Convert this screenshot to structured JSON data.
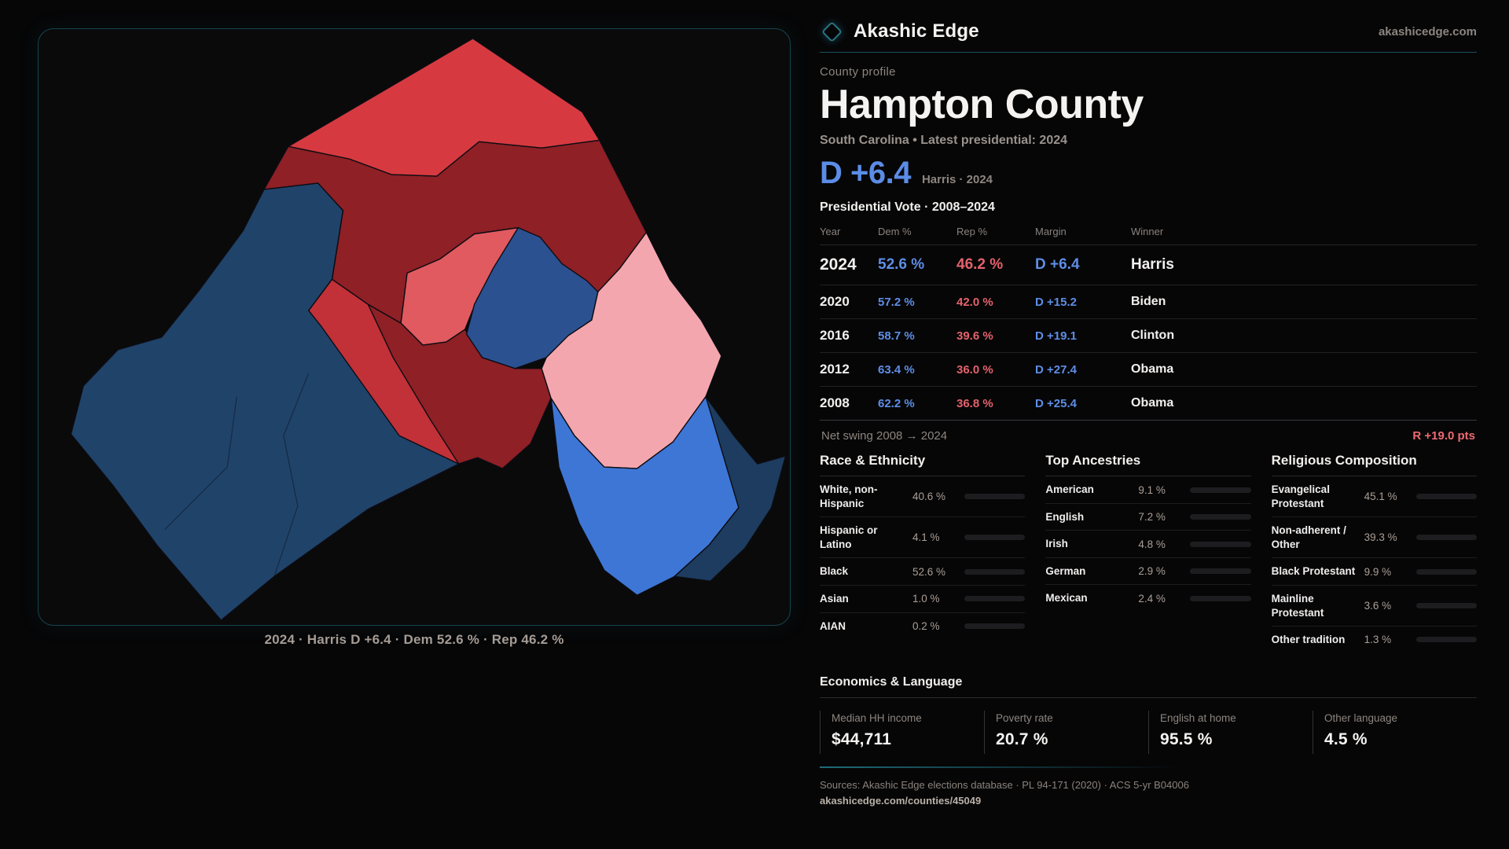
{
  "brand": {
    "name": "Akashic Edge",
    "domain": "akashicedge.com"
  },
  "profile": {
    "kicker": "County profile",
    "title": "Hampton County",
    "subtitle": "South Carolina • Latest presidential: 2024",
    "hero_margin": "D +6.4",
    "hero_note": "Harris · 2024",
    "accent_blue": "#5b8ce6",
    "accent_red": "#e4626c"
  },
  "vote_table": {
    "title": "Presidential Vote · 2008–2024",
    "columns": [
      "Year",
      "Dem %",
      "Rep %",
      "Margin",
      "Winner"
    ],
    "rows": [
      {
        "year": "2024",
        "dem": "52.6 %",
        "rep": "46.2 %",
        "margin": "D +6.4",
        "winner": "Harris"
      },
      {
        "year": "2020",
        "dem": "57.2 %",
        "rep": "42.0 %",
        "margin": "D +15.2",
        "winner": "Biden"
      },
      {
        "year": "2016",
        "dem": "58.7 %",
        "rep": "39.6 %",
        "margin": "D +19.1",
        "winner": "Clinton"
      },
      {
        "year": "2012",
        "dem": "63.4 %",
        "rep": "36.0 %",
        "margin": "D +27.4",
        "winner": "Obama"
      },
      {
        "year": "2008",
        "dem": "62.2 %",
        "rep": "36.8 %",
        "margin": "D +25.4",
        "winner": "Obama"
      }
    ]
  },
  "net_swing": {
    "label": "Net swing 2008 → 2024",
    "value": "R +19.0 pts"
  },
  "sections": {
    "race": {
      "title": "Race & Ethnicity",
      "rows": [
        {
          "label": "White, non-Hispanic",
          "value": "40.6 %",
          "pct": 40.6,
          "color": "#8b9fc0"
        },
        {
          "label": "Hispanic or Latino",
          "value": "4.1 %",
          "pct": 4.1,
          "color": "#e39a38"
        },
        {
          "label": "Black",
          "value": "52.6 %",
          "pct": 52.6,
          "color": "#8f78de"
        },
        {
          "label": "Asian",
          "value": "1.0 %",
          "pct": 1.0,
          "color": "#2ec4a0"
        },
        {
          "label": "AIAN",
          "value": "0.2 %",
          "pct": 0.2,
          "color": "#4a4a50"
        }
      ]
    },
    "ancestries": {
      "title": "Top Ancestries",
      "rows": [
        {
          "label": "American",
          "value": "9.1 %",
          "pct": 9.1,
          "color": "#8b9fc0"
        },
        {
          "label": "English",
          "value": "7.2 %",
          "pct": 7.2,
          "color": "#8b9fc0"
        },
        {
          "label": "Irish",
          "value": "4.8 %",
          "pct": 4.8,
          "color": "#8b9fc0"
        },
        {
          "label": "German",
          "value": "2.9 %",
          "pct": 2.9,
          "color": "#8b9fc0"
        },
        {
          "label": "Mexican",
          "value": "2.4 %",
          "pct": 2.4,
          "color": "#e39a38"
        }
      ]
    },
    "religion": {
      "title": "Religious Composition",
      "rows": [
        {
          "label": "Evangelical Protestant",
          "value": "45.1 %",
          "pct": 45.1,
          "color": "#dd5f68"
        },
        {
          "label": "Non-adherent / Other",
          "value": "39.3 %",
          "pct": 39.3,
          "color": "#7c87a2"
        },
        {
          "label": "Black Protestant",
          "value": "9.9 %",
          "pct": 9.9,
          "color": "#8f78de"
        },
        {
          "label": "Mainline Protestant",
          "value": "3.6 %",
          "pct": 3.6,
          "color": "#4a8fe8"
        },
        {
          "label": "Other tradition",
          "value": "1.3 %",
          "pct": 1.3,
          "color": "#c9c4bf"
        }
      ]
    }
  },
  "economics": {
    "title": "Economics & Language",
    "stats": [
      {
        "label": "Median HH income",
        "value": "$44,711"
      },
      {
        "label": "Poverty rate",
        "value": "20.7 %"
      },
      {
        "label": "English at home",
        "value": "95.5 %"
      },
      {
        "label": "Other language",
        "value": "4.5 %"
      }
    ]
  },
  "footer": {
    "sources": "Sources: Akashic Edge elections database · PL 94-171 (2020) · ACS 5-yr B04006",
    "permalink": "akashicedge.com/counties/45049"
  },
  "map": {
    "caption": "2024 · Harris D +6.4 · Dem 52.6 % · Rep 46.2 %",
    "regions": [
      {
        "name": "west-dem-navy",
        "color": "#20436a"
      },
      {
        "name": "lower-rep-dark",
        "color": "#8e2026"
      },
      {
        "name": "lower-rep-mid",
        "color": "#c23138"
      },
      {
        "name": "upper-rep-dark",
        "color": "#8e2026"
      },
      {
        "name": "top-rep-bright",
        "color": "#d63a40"
      },
      {
        "name": "center-rep-light",
        "color": "#e05a60"
      },
      {
        "name": "east-rep-pink",
        "color": "#f4a6ae"
      },
      {
        "name": "southeast-dem-royal",
        "color": "#3e76d6"
      },
      {
        "name": "corner-dem-navy",
        "color": "#1d3c5f"
      },
      {
        "name": "center-dem-blob",
        "color": "#2b5191"
      }
    ]
  }
}
